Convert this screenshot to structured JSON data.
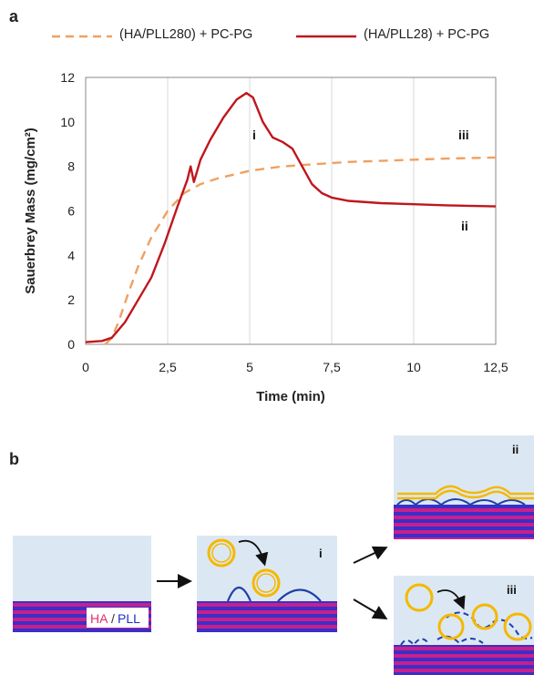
{
  "panel_a": {
    "label": "a",
    "legend": [
      {
        "name": "(HA/PLL280) + PC-PG",
        "color": "#f0a060",
        "style": "dashed"
      },
      {
        "name": "(HA/PLL28) + PC-PG",
        "color": "#c0161d",
        "style": "solid"
      }
    ],
    "annotations": {
      "i": "i",
      "ii": "ii",
      "iii": "iii"
    }
  },
  "chart_data": {
    "type": "line",
    "title": "",
    "xlabel": "Time (min)",
    "ylabel": "Sauerbrey Mass (mg/cm²)",
    "xlim": [
      0,
      12.5
    ],
    "ylim": [
      0,
      12
    ],
    "xticks": [
      0,
      2.5,
      5,
      7.5,
      10,
      12.5
    ],
    "xtick_labels": [
      "0",
      "2,5",
      "5",
      "7,5",
      "10",
      "12,5"
    ],
    "yticks": [
      0,
      2,
      4,
      6,
      8,
      10,
      12
    ],
    "ytick_labels": [
      "0",
      "2",
      "4",
      "6",
      "8",
      "10",
      "12"
    ],
    "grid": "vertical",
    "series": [
      {
        "name": "(HA/PLL280) + PC-PG",
        "color": "#f0a060",
        "style": "dashed",
        "x": [
          0.6,
          0.8,
          1.0,
          1.3,
          1.6,
          2.0,
          2.5,
          3.0,
          3.5,
          4.0,
          5.0,
          6.0,
          7.0,
          8.0,
          9.0,
          10.0,
          11.0,
          12.5
        ],
        "y": [
          0,
          0.3,
          1.0,
          2.3,
          3.5,
          4.8,
          6.0,
          6.8,
          7.2,
          7.45,
          7.8,
          8.0,
          8.1,
          8.2,
          8.25,
          8.3,
          8.35,
          8.4
        ]
      },
      {
        "name": "(HA/PLL28) + PC-PG",
        "color": "#c0161d",
        "style": "solid",
        "x": [
          0,
          0.5,
          0.8,
          1.2,
          1.6,
          2.0,
          2.4,
          2.8,
          3.1,
          3.2,
          3.3,
          3.5,
          3.8,
          4.2,
          4.6,
          4.9,
          5.1,
          5.4,
          5.7,
          6.0,
          6.3,
          6.6,
          6.9,
          7.2,
          7.5,
          8.0,
          9.0,
          10.0,
          11.0,
          12.5
        ],
        "y": [
          0.1,
          0.15,
          0.3,
          1.0,
          2.0,
          3.0,
          4.5,
          6.2,
          7.4,
          8.0,
          7.3,
          8.3,
          9.2,
          10.2,
          11.0,
          11.3,
          11.1,
          10.0,
          9.3,
          9.1,
          8.8,
          8.0,
          7.2,
          6.8,
          6.6,
          6.45,
          6.35,
          6.3,
          6.25,
          6.2
        ]
      }
    ]
  },
  "panel_b": {
    "label": "b",
    "ha_text": "HA",
    "slash_text": "/",
    "pll_text": "PLL",
    "ha_color": "#e0306a",
    "pll_color": "#2030c0",
    "roman_i": "i",
    "roman_ii": "ii",
    "roman_iii": "iii",
    "colors": {
      "solution": "#dbe8f3",
      "stripe_magenta": "#c8208a",
      "stripe_blue": "#3a2fc8",
      "vesicle": "#f5b800",
      "protein": "#1f3fa8"
    }
  }
}
